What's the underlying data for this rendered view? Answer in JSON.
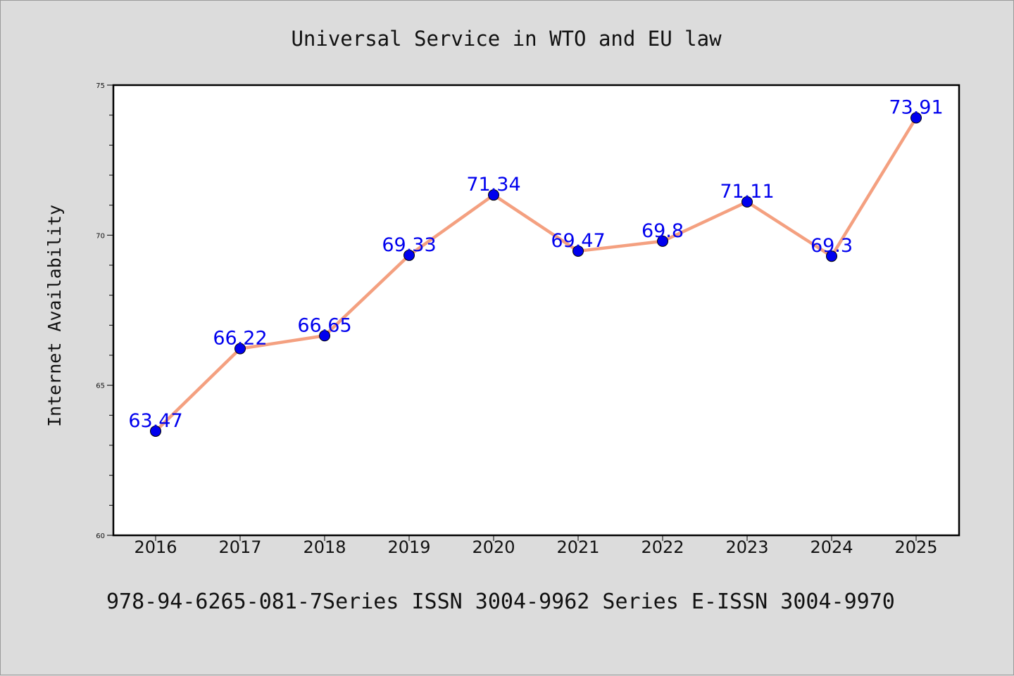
{
  "chart_data": {
    "type": "line",
    "title": "Universal Service in WTO and EU law",
    "ylabel": "Internet Availability",
    "xlabel": "",
    "categories": [
      "2016",
      "2017",
      "2018",
      "2019",
      "2020",
      "2021",
      "2022",
      "2023",
      "2024",
      "2025"
    ],
    "values": [
      63.47,
      66.22,
      66.65,
      69.33,
      71.34,
      69.47,
      69.8,
      71.11,
      69.3,
      73.91
    ],
    "data_labels": [
      "63.47",
      "66.22",
      "66.65",
      "69.33",
      "71.34",
      "69.47",
      "69.8",
      "71.11",
      "69.3",
      "73.91"
    ],
    "ylim": [
      60,
      75
    ],
    "yticks": [
      "60",
      "65",
      "70",
      "75"
    ],
    "grid": false,
    "line_color": "#f4a080",
    "marker_color": "#0000ee",
    "label_color": "#0000ee",
    "footer": "978-94-6265-081-7Series ISSN 3004-9962 Series E-ISSN 3004-9970"
  }
}
